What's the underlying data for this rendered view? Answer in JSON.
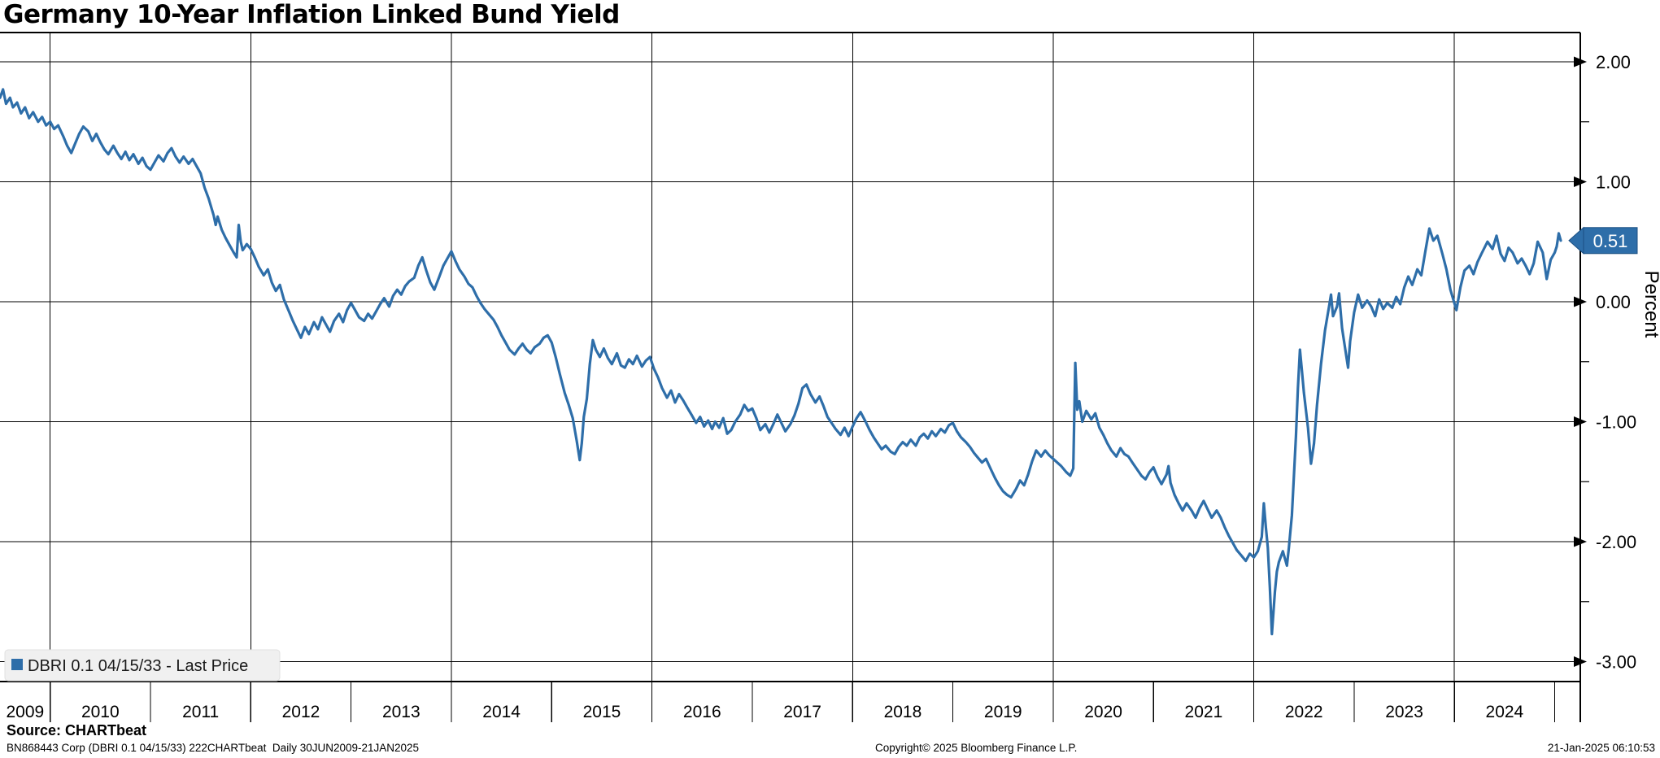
{
  "title": "Germany 10-Year Inflation Linked Bund Yield",
  "legend": {
    "label": "DBRI 0.1 04/15/33 - Last Price",
    "swatch_color": "#2e6ea9",
    "box_color": "#f0f0f0"
  },
  "last_price_badge": {
    "value": "0.51",
    "bg": "#2e6ea9",
    "text_color": "#ffffff"
  },
  "y_axis": {
    "label": "Percent",
    "tick_labels": [
      "2.00",
      "1.00",
      "0.00",
      "-1.00",
      "-2.00",
      "-3.00"
    ],
    "tick_values": [
      2,
      1,
      0,
      -1,
      -2,
      -3
    ],
    "minor_tick_values": [
      1.5,
      0.5,
      -0.5,
      -1.5,
      -2.5
    ]
  },
  "x_axis": {
    "year_labels": [
      "2009",
      "2010",
      "2011",
      "2012",
      "2013",
      "2014",
      "2015",
      "2016",
      "2017",
      "2018",
      "2019",
      "2020",
      "2021",
      "2022",
      "2023",
      "2024"
    ],
    "boundary_tick_years": [
      2010,
      2011,
      2012,
      2013,
      2014,
      2015,
      2016,
      2017,
      2018,
      2019,
      2020,
      2021,
      2022,
      2023,
      2024,
      2025
    ],
    "gridline_years": [
      2010,
      2012,
      2014,
      2016,
      2018,
      2020,
      2022,
      2024
    ]
  },
  "source": {
    "label": "Source: CHARTbeat"
  },
  "footer": {
    "left": "BN868443 Corp (DBRI 0.1 04/15/33) 222CHARTbeat  Daily 30JUN2009-21JAN2025",
    "center": "Copyright© 2025 Bloomberg Finance L.P.",
    "right": "21-Jan-2025 06:10:53"
  },
  "colors": {
    "grid": "#000000",
    "line": "#2e6ea9",
    "background": "#ffffff"
  },
  "chart_data": {
    "type": "line",
    "title": "Germany 10-Year Inflation Linked Bund Yield",
    "xlabel": "",
    "ylabel": "Percent",
    "xlim": [
      2009.5,
      2025.255
    ],
    "ylim": [
      -3.166,
      2.244
    ],
    "grid": "on",
    "legend_position": "bottom-left",
    "last_value": 0.51,
    "series": [
      {
        "name": "DBRI 0.1 04/15/33 - Last Price",
        "color": "#2e6ea9",
        "x": [
          2009.5,
          2009.53,
          2009.56,
          2009.6,
          2009.63,
          2009.67,
          2009.71,
          2009.75,
          2009.79,
          2009.83,
          2009.88,
          2009.92,
          2009.96,
          2010.0,
          2010.04,
          2010.08,
          2010.13,
          2010.17,
          2010.21,
          2010.25,
          2010.29,
          2010.33,
          2010.38,
          2010.42,
          2010.46,
          2010.5,
          2010.54,
          2010.58,
          2010.63,
          2010.67,
          2010.71,
          2010.75,
          2010.79,
          2010.83,
          2010.88,
          2010.92,
          2010.96,
          2011.0,
          2011.04,
          2011.08,
          2011.13,
          2011.17,
          2011.21,
          2011.25,
          2011.29,
          2011.33,
          2011.38,
          2011.42,
          2011.46,
          2011.5,
          2011.54,
          2011.58,
          2011.63,
          2011.65,
          2011.67,
          2011.71,
          2011.75,
          2011.79,
          2011.83,
          2011.86,
          2011.88,
          2011.9,
          2011.92,
          2011.96,
          2012.0,
          2012.04,
          2012.08,
          2012.13,
          2012.17,
          2012.21,
          2012.25,
          2012.29,
          2012.33,
          2012.38,
          2012.42,
          2012.46,
          2012.5,
          2012.54,
          2012.58,
          2012.63,
          2012.67,
          2012.71,
          2012.75,
          2012.79,
          2012.83,
          2012.88,
          2012.92,
          2012.96,
          2013.0,
          2013.04,
          2013.08,
          2013.13,
          2013.17,
          2013.21,
          2013.25,
          2013.29,
          2013.33,
          2013.38,
          2013.42,
          2013.46,
          2013.5,
          2013.54,
          2013.58,
          2013.63,
          2013.67,
          2013.71,
          2013.75,
          2013.79,
          2013.83,
          2013.88,
          2013.92,
          2013.96,
          2014.0,
          2014.04,
          2014.08,
          2014.13,
          2014.17,
          2014.21,
          2014.25,
          2014.29,
          2014.33,
          2014.38,
          2014.42,
          2014.46,
          2014.5,
          2014.54,
          2014.58,
          2014.63,
          2014.67,
          2014.71,
          2014.75,
          2014.79,
          2014.83,
          2014.88,
          2014.92,
          2014.96,
          2015.0,
          2015.04,
          2015.08,
          2015.13,
          2015.17,
          2015.21,
          2015.25,
          2015.28,
          2015.3,
          2015.32,
          2015.35,
          2015.38,
          2015.41,
          2015.44,
          2015.48,
          2015.52,
          2015.56,
          2015.6,
          2015.65,
          2015.69,
          2015.73,
          2015.77,
          2015.81,
          2015.85,
          2015.9,
          2015.94,
          2015.98,
          2016.02,
          2016.06,
          2016.1,
          2016.15,
          2016.19,
          2016.23,
          2016.27,
          2016.31,
          2016.35,
          2016.4,
          2016.44,
          2016.48,
          2016.52,
          2016.56,
          2016.6,
          2016.63,
          2016.67,
          2016.71,
          2016.75,
          2016.79,
          2016.83,
          2016.88,
          2016.92,
          2016.96,
          2017.0,
          2017.04,
          2017.08,
          2017.13,
          2017.17,
          2017.21,
          2017.25,
          2017.29,
          2017.33,
          2017.38,
          2017.42,
          2017.46,
          2017.5,
          2017.54,
          2017.58,
          2017.63,
          2017.67,
          2017.71,
          2017.75,
          2017.79,
          2017.83,
          2017.88,
          2017.92,
          2017.96,
          2018.0,
          2018.04,
          2018.08,
          2018.13,
          2018.17,
          2018.21,
          2018.25,
          2018.29,
          2018.33,
          2018.38,
          2018.42,
          2018.46,
          2018.5,
          2018.54,
          2018.58,
          2018.63,
          2018.67,
          2018.71,
          2018.75,
          2018.79,
          2018.83,
          2018.88,
          2018.92,
          2018.96,
          2019.0,
          2019.04,
          2019.08,
          2019.13,
          2019.17,
          2019.21,
          2019.25,
          2019.29,
          2019.33,
          2019.38,
          2019.42,
          2019.46,
          2019.5,
          2019.54,
          2019.58,
          2019.63,
          2019.67,
          2019.71,
          2019.75,
          2019.79,
          2019.83,
          2019.88,
          2019.92,
          2019.96,
          2020.0,
          2020.04,
          2020.08,
          2020.13,
          2020.17,
          2020.2,
          2020.22,
          2020.24,
          2020.26,
          2020.29,
          2020.33,
          2020.38,
          2020.42,
          2020.46,
          2020.5,
          2020.54,
          2020.58,
          2020.63,
          2020.67,
          2020.71,
          2020.75,
          2020.79,
          2020.83,
          2020.88,
          2020.92,
          2020.96,
          2021.0,
          2021.04,
          2021.08,
          2021.13,
          2021.15,
          2021.17,
          2021.21,
          2021.25,
          2021.29,
          2021.33,
          2021.38,
          2021.42,
          2021.46,
          2021.5,
          2021.54,
          2021.58,
          2021.63,
          2021.67,
          2021.71,
          2021.75,
          2021.79,
          2021.83,
          2021.88,
          2021.92,
          2021.96,
          2022.0,
          2022.04,
          2022.08,
          2022.1,
          2022.12,
          2022.14,
          2022.16,
          2022.18,
          2022.21,
          2022.23,
          2022.25,
          2022.29,
          2022.33,
          2022.35,
          2022.38,
          2022.4,
          2022.42,
          2022.44,
          2022.46,
          2022.48,
          2022.5,
          2022.54,
          2022.57,
          2022.6,
          2022.63,
          2022.67,
          2022.71,
          2022.75,
          2022.77,
          2022.79,
          2022.83,
          2022.85,
          2022.88,
          2022.92,
          2022.94,
          2022.96,
          2023.0,
          2023.04,
          2023.08,
          2023.13,
          2023.17,
          2023.21,
          2023.25,
          2023.29,
          2023.33,
          2023.38,
          2023.42,
          2023.46,
          2023.5,
          2023.54,
          2023.58,
          2023.63,
          2023.67,
          2023.71,
          2023.75,
          2023.79,
          2023.83,
          2023.88,
          2023.92,
          2023.96,
          2024.02,
          2024.06,
          2024.1,
          2024.15,
          2024.19,
          2024.23,
          2024.27,
          2024.33,
          2024.38,
          2024.42,
          2024.46,
          2024.5,
          2024.54,
          2024.58,
          2024.63,
          2024.67,
          2024.71,
          2024.75,
          2024.79,
          2024.83,
          2024.88,
          2024.92,
          2024.96,
          2025.0,
          2025.02,
          2025.04,
          2025.06
        ],
        "y": [
          1.7,
          1.77,
          1.65,
          1.7,
          1.62,
          1.66,
          1.57,
          1.62,
          1.53,
          1.58,
          1.5,
          1.54,
          1.47,
          1.5,
          1.44,
          1.47,
          1.38,
          1.3,
          1.24,
          1.32,
          1.4,
          1.46,
          1.42,
          1.34,
          1.4,
          1.33,
          1.27,
          1.23,
          1.3,
          1.24,
          1.19,
          1.25,
          1.18,
          1.23,
          1.15,
          1.2,
          1.13,
          1.1,
          1.16,
          1.22,
          1.17,
          1.24,
          1.28,
          1.21,
          1.16,
          1.21,
          1.15,
          1.19,
          1.13,
          1.07,
          0.95,
          0.86,
          0.72,
          0.64,
          0.71,
          0.6,
          0.53,
          0.47,
          0.41,
          0.37,
          0.64,
          0.5,
          0.43,
          0.48,
          0.44,
          0.37,
          0.29,
          0.22,
          0.27,
          0.16,
          0.09,
          0.14,
          0.02,
          -0.08,
          -0.16,
          -0.23,
          -0.3,
          -0.21,
          -0.27,
          -0.17,
          -0.23,
          -0.13,
          -0.19,
          -0.25,
          -0.16,
          -0.1,
          -0.17,
          -0.07,
          -0.01,
          -0.07,
          -0.13,
          -0.16,
          -0.1,
          -0.14,
          -0.08,
          -0.02,
          0.03,
          -0.04,
          0.05,
          0.1,
          0.06,
          0.13,
          0.17,
          0.2,
          0.3,
          0.37,
          0.26,
          0.16,
          0.1,
          0.21,
          0.3,
          0.36,
          0.42,
          0.34,
          0.27,
          0.21,
          0.15,
          0.12,
          0.05,
          -0.01,
          -0.06,
          -0.11,
          -0.15,
          -0.21,
          -0.28,
          -0.34,
          -0.4,
          -0.44,
          -0.39,
          -0.35,
          -0.4,
          -0.43,
          -0.38,
          -0.35,
          -0.3,
          -0.28,
          -0.34,
          -0.46,
          -0.6,
          -0.76,
          -0.86,
          -0.97,
          -1.16,
          -1.32,
          -1.18,
          -0.96,
          -0.81,
          -0.52,
          -0.32,
          -0.4,
          -0.46,
          -0.39,
          -0.47,
          -0.52,
          -0.43,
          -0.53,
          -0.55,
          -0.48,
          -0.52,
          -0.45,
          -0.54,
          -0.49,
          -0.46,
          -0.56,
          -0.63,
          -0.72,
          -0.8,
          -0.74,
          -0.84,
          -0.77,
          -0.82,
          -0.88,
          -0.95,
          -1.01,
          -0.96,
          -1.04,
          -0.99,
          -1.06,
          -1.0,
          -1.05,
          -0.97,
          -1.1,
          -1.07,
          -1.0,
          -0.94,
          -0.86,
          -0.91,
          -0.89,
          -0.97,
          -1.07,
          -1.02,
          -1.09,
          -1.02,
          -0.94,
          -1.01,
          -1.08,
          -1.02,
          -0.95,
          -0.85,
          -0.72,
          -0.69,
          -0.77,
          -0.84,
          -0.79,
          -0.87,
          -0.96,
          -1.01,
          -1.06,
          -1.11,
          -1.05,
          -1.12,
          -1.04,
          -0.97,
          -0.92,
          -1.0,
          -1.07,
          -1.13,
          -1.18,
          -1.23,
          -1.2,
          -1.25,
          -1.27,
          -1.21,
          -1.17,
          -1.2,
          -1.15,
          -1.2,
          -1.13,
          -1.1,
          -1.14,
          -1.08,
          -1.12,
          -1.06,
          -1.09,
          -1.03,
          -1.01,
          -1.08,
          -1.13,
          -1.17,
          -1.21,
          -1.26,
          -1.3,
          -1.34,
          -1.31,
          -1.4,
          -1.47,
          -1.53,
          -1.58,
          -1.61,
          -1.63,
          -1.56,
          -1.49,
          -1.53,
          -1.44,
          -1.33,
          -1.24,
          -1.29,
          -1.24,
          -1.28,
          -1.31,
          -1.34,
          -1.37,
          -1.42,
          -1.45,
          -1.39,
          -0.51,
          -0.9,
          -0.83,
          -1.0,
          -0.91,
          -0.98,
          -0.93,
          -1.05,
          -1.11,
          -1.18,
          -1.24,
          -1.29,
          -1.22,
          -1.27,
          -1.29,
          -1.34,
          -1.39,
          -1.45,
          -1.48,
          -1.42,
          -1.38,
          -1.46,
          -1.52,
          -1.44,
          -1.37,
          -1.51,
          -1.61,
          -1.68,
          -1.74,
          -1.68,
          -1.74,
          -1.8,
          -1.72,
          -1.66,
          -1.73,
          -1.8,
          -1.74,
          -1.8,
          -1.88,
          -1.95,
          -2.01,
          -2.07,
          -2.12,
          -2.16,
          -2.1,
          -2.13,
          -2.08,
          -1.96,
          -1.68,
          -1.88,
          -2.05,
          -2.38,
          -2.77,
          -2.42,
          -2.25,
          -2.17,
          -2.08,
          -2.2,
          -2.05,
          -1.78,
          -1.45,
          -1.12,
          -0.72,
          -0.4,
          -0.58,
          -0.76,
          -1.05,
          -1.35,
          -1.18,
          -0.86,
          -0.52,
          -0.24,
          -0.04,
          0.06,
          -0.12,
          -0.04,
          0.07,
          -0.22,
          -0.44,
          -0.55,
          -0.33,
          -0.09,
          0.06,
          -0.05,
          0.01,
          -0.04,
          -0.12,
          0.02,
          -0.06,
          -0.01,
          -0.05,
          0.04,
          -0.02,
          0.12,
          0.21,
          0.14,
          0.27,
          0.22,
          0.42,
          0.61,
          0.51,
          0.55,
          0.4,
          0.27,
          0.1,
          -0.07,
          0.12,
          0.26,
          0.3,
          0.23,
          0.33,
          0.4,
          0.5,
          0.44,
          0.55,
          0.4,
          0.34,
          0.45,
          0.41,
          0.32,
          0.36,
          0.3,
          0.23,
          0.32,
          0.5,
          0.41,
          0.19,
          0.35,
          0.41,
          0.46,
          0.57,
          0.51
        ]
      }
    ]
  },
  "layout_note_values_visible_only": true
}
